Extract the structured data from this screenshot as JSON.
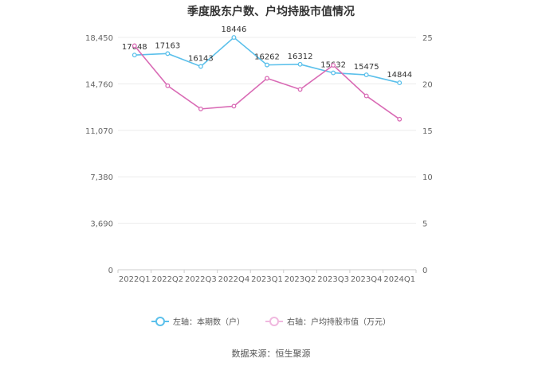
{
  "chart_data": {
    "type": "line",
    "title": "季度股东户数、户均持股市值情况",
    "categories": [
      "2022Q1",
      "2022Q2",
      "2022Q3",
      "2022Q4",
      "2023Q1",
      "2023Q2",
      "2023Q3",
      "2023Q4",
      "2024Q1"
    ],
    "left_axis": {
      "ticks": [
        "0",
        "3,690",
        "7,380",
        "11,070",
        "14,760",
        "18,450"
      ],
      "ylim": [
        0,
        18450
      ]
    },
    "right_axis": {
      "ticks": [
        "0",
        "5",
        "10",
        "15",
        "20",
        "25"
      ],
      "ylim": [
        0,
        25
      ]
    },
    "series": [
      {
        "name": "左轴：本期数（户）",
        "axis": "left",
        "color": "#5bc0eb",
        "values": [
          17048,
          17163,
          16143,
          18446,
          16262,
          16312,
          15632,
          15475,
          14844
        ],
        "labels": [
          "17048",
          "17163",
          "16143",
          "18446",
          "16262",
          "16312",
          "15632",
          "15475",
          "14844"
        ]
      },
      {
        "name": "右轴：户均持股市值（万元）",
        "axis": "right",
        "color": "#d96bb5",
        "values": [
          24.1,
          19.8,
          17.3,
          17.6,
          20.6,
          19.4,
          22.0,
          18.7,
          16.2
        ]
      }
    ],
    "grid": true,
    "legend_position": "bottom"
  },
  "source_text": "数据来源：恒生聚源"
}
